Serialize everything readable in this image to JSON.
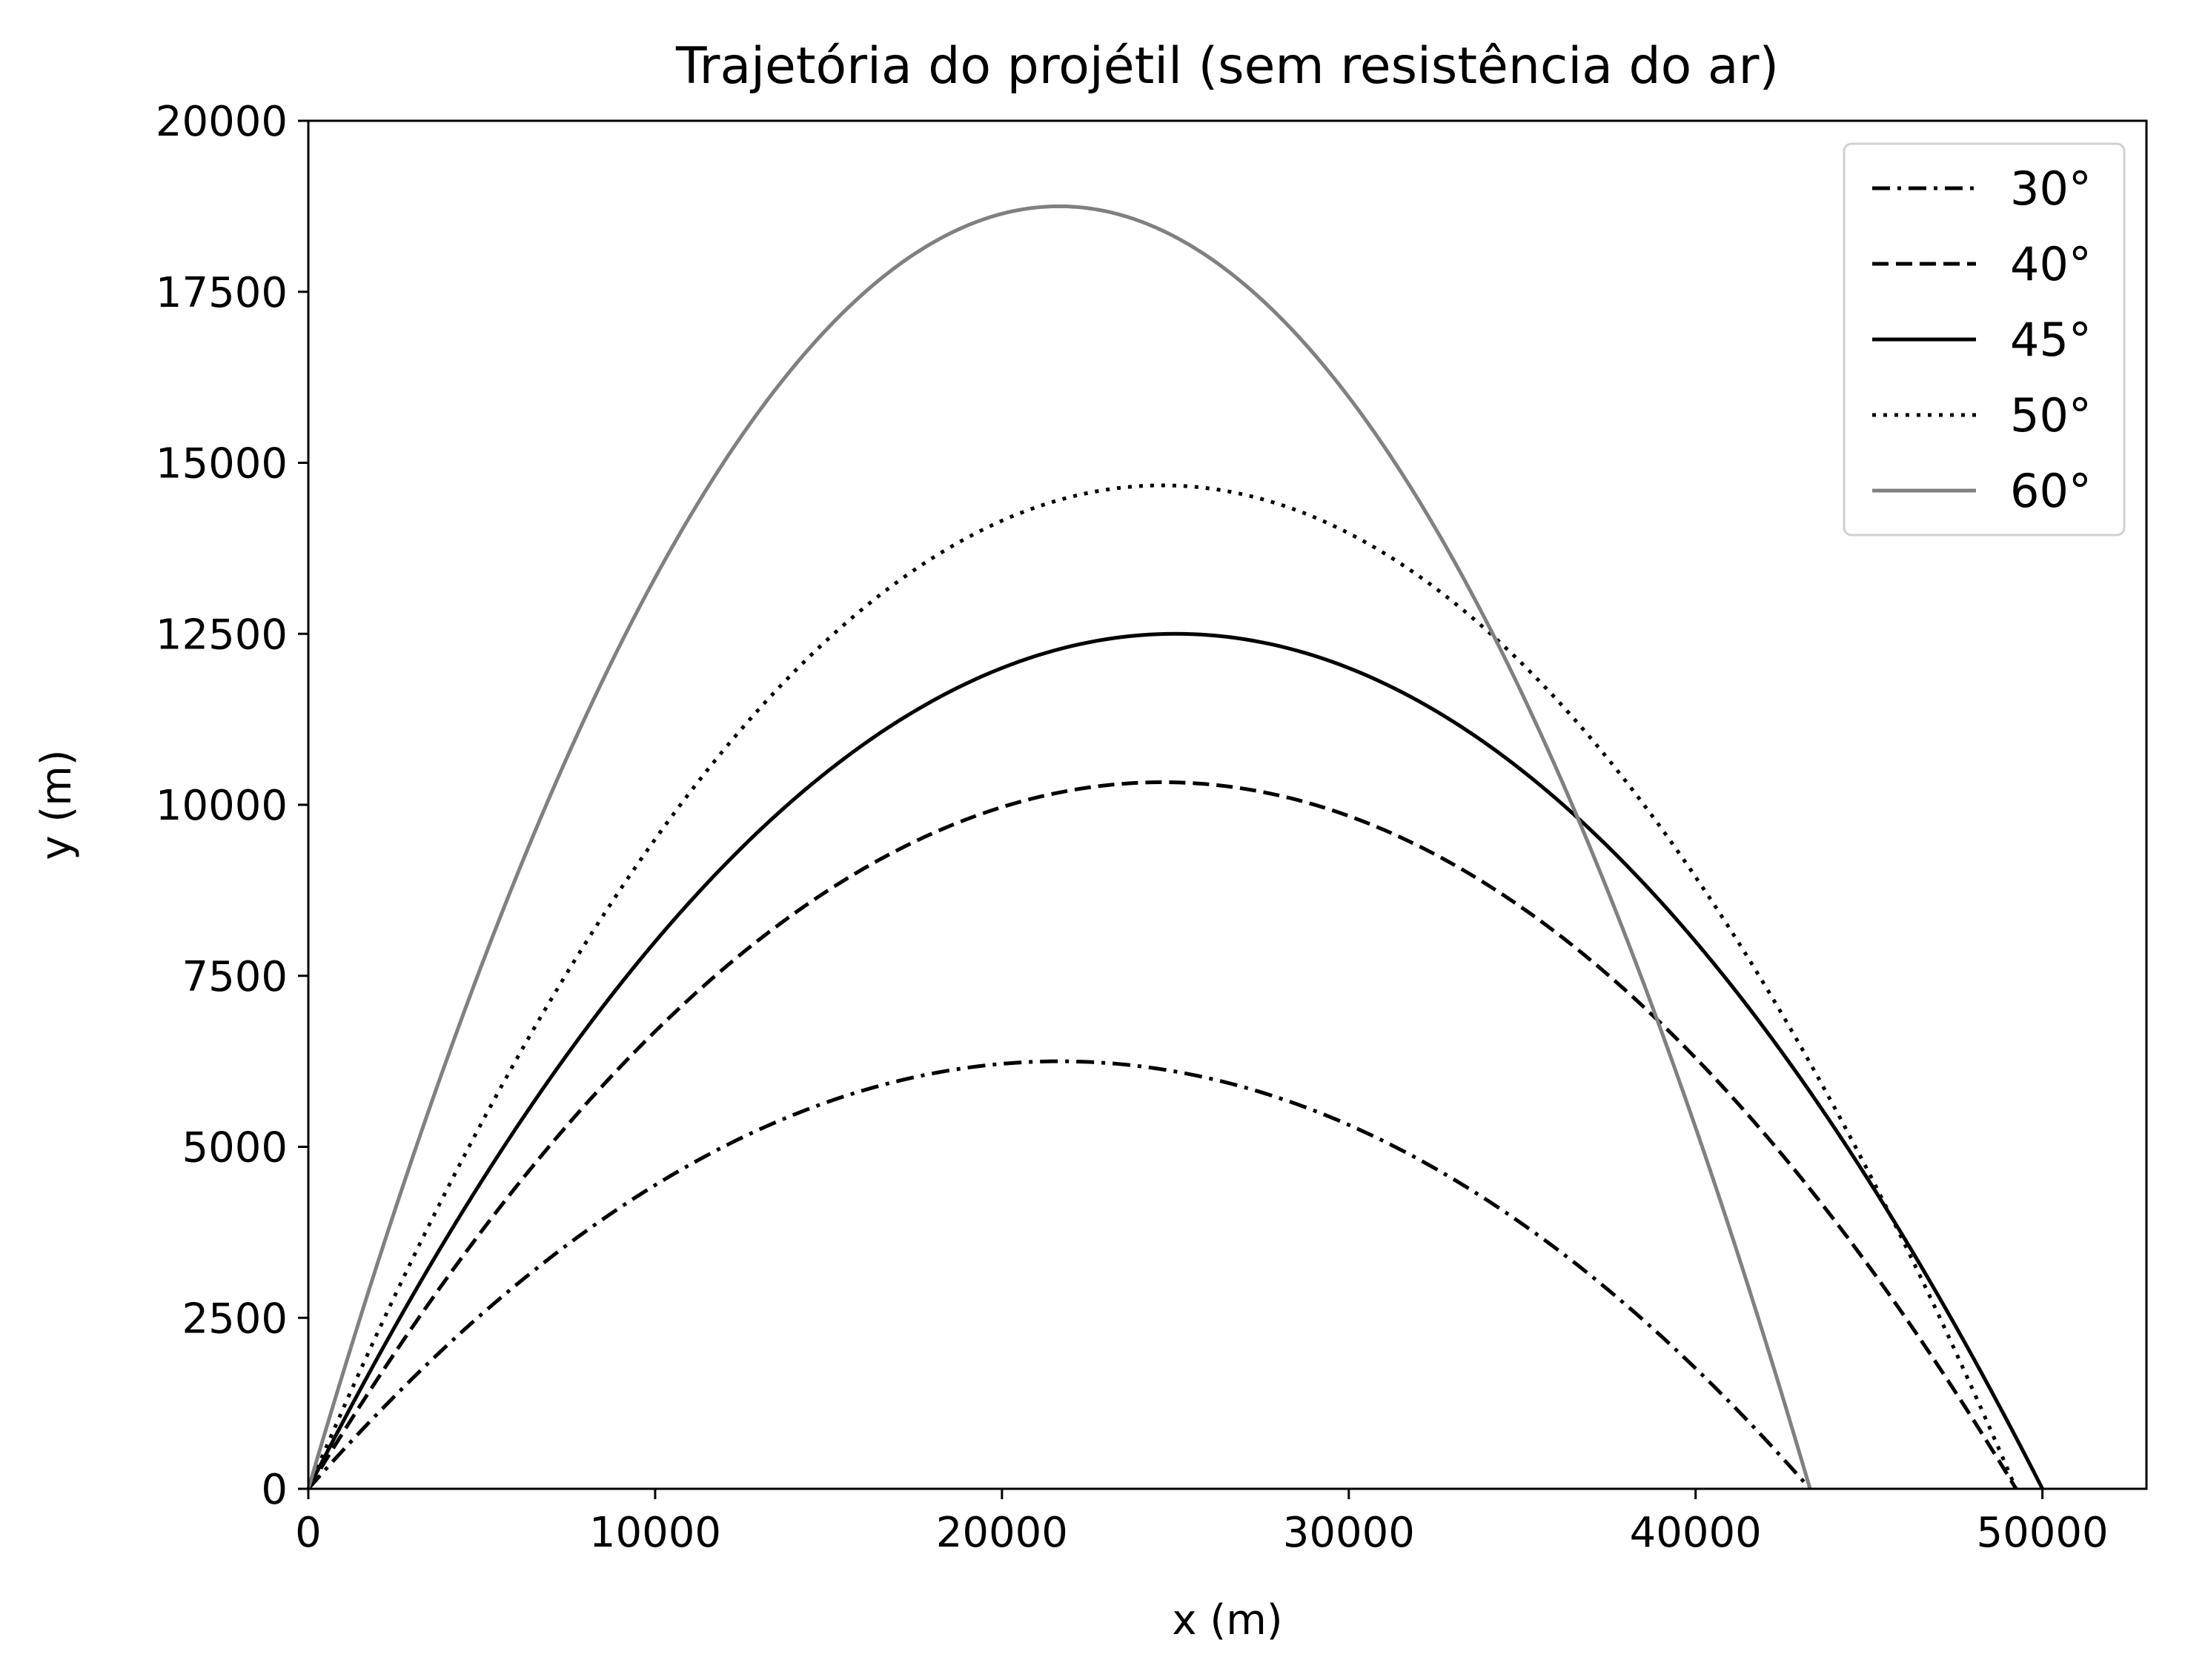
{
  "chart_data": {
    "type": "line",
    "title": "Trajetória do projétil (sem resistência do ar)",
    "xlabel": "x (m)",
    "ylabel": "y (m)",
    "xlim": [
      0,
      53000
    ],
    "ylim": [
      0,
      20000
    ],
    "x_ticks": [
      0,
      10000,
      20000,
      30000,
      40000,
      50000
    ],
    "y_ticks": [
      0,
      2500,
      5000,
      7500,
      10000,
      12500,
      15000,
      17500,
      20000
    ],
    "grid": false,
    "legend_position": "top-right",
    "series": [
      {
        "name": "30°",
        "angle_deg": 30,
        "line_style": "dashdot",
        "color": "#000000",
        "x": [
          0,
          4330,
          8660,
          12990,
          17320,
          21650,
          25980,
          30310,
          34640,
          38970,
          43300
        ],
        "y": [
          0,
          2250,
          4000,
          5250,
          6000,
          6250,
          6000,
          5250,
          4000,
          2250,
          0
        ]
      },
      {
        "name": "40°",
        "angle_deg": 40,
        "line_style": "dashed",
        "color": "#000000",
        "x": [
          0,
          4924,
          9848,
          14772,
          19696,
          24620,
          29544,
          34468,
          39392,
          44316,
          49240
        ],
        "y": [
          0,
          3719,
          6611,
          8677,
          9917,
          10330,
          9917,
          8677,
          6611,
          3719,
          0
        ]
      },
      {
        "name": "45°",
        "angle_deg": 45,
        "line_style": "solid",
        "color": "#000000",
        "x": [
          0,
          5000,
          10000,
          15000,
          20000,
          25000,
          30000,
          35000,
          40000,
          45000,
          50000
        ],
        "y": [
          0,
          4500,
          8000,
          10500,
          12000,
          12500,
          12000,
          10500,
          8000,
          4500,
          0
        ]
      },
      {
        "name": "50°",
        "angle_deg": 50,
        "line_style": "dotted",
        "color": "#000000",
        "x": [
          0,
          4924,
          9848,
          14772,
          19696,
          24620,
          29544,
          34468,
          39392,
          44316,
          49240
        ],
        "y": [
          0,
          5281,
          9389,
          12323,
          14083,
          14670,
          14083,
          12323,
          9389,
          5281,
          0
        ]
      },
      {
        "name": "60°",
        "angle_deg": 60,
        "line_style": "solid",
        "color": "#808080",
        "x": [
          0,
          4330,
          8660,
          12990,
          17320,
          21650,
          25980,
          30310,
          34640,
          38970,
          43300
        ],
        "y": [
          0,
          6750,
          12000,
          15750,
          18000,
          18750,
          18000,
          15750,
          12000,
          6750,
          0
        ]
      }
    ]
  }
}
